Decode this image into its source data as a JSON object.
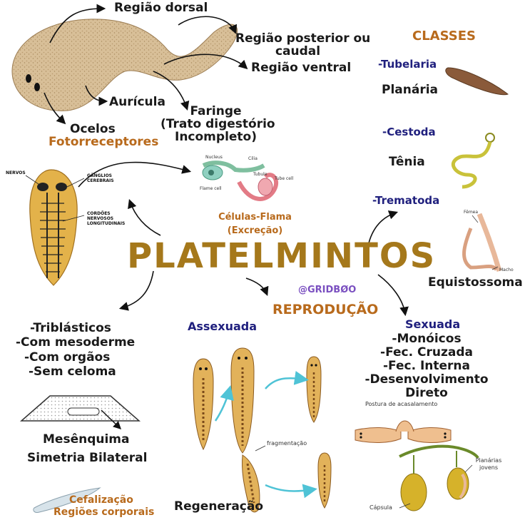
{
  "title": "PLATELMINTOS",
  "watermark": "@GRIDBØO",
  "top_labels": {
    "dorsal": "Região dorsal",
    "posterior_1": "Região posterior ou",
    "posterior_2": "caudal",
    "ventral": "Região ventral",
    "auricula": "Aurícula",
    "faringe_1": "Faringe",
    "faringe_2": "(Trato digestório",
    "faringe_3": "Incompleto)",
    "ocelos": "Ocelos",
    "fotorreceptores": "Fotorreceptores"
  },
  "nervous": {
    "nervos": "NERVOS",
    "ganglios_1": "GÂNGLIOS",
    "ganglios_2": "CEREBRAIS",
    "cordoes_1": "CORDÕES",
    "cordoes_2": "NERVOSOS",
    "cordoes_3": "LONGITUDINAIS"
  },
  "flame_cell": {
    "label_1": "Células-Flama",
    "label_2": "(Excreção)",
    "nucleus": "Nucleus",
    "cilia": "Cilia",
    "flame": "Flame cell",
    "tubule": "Tubule",
    "tubecell": "Tube cell"
  },
  "classes": {
    "heading": "CLASSES",
    "items": [
      {
        "class": "-Tubelaria",
        "example": "Planária"
      },
      {
        "class": "-Cestoda",
        "example": "Tênia"
      },
      {
        "class": "-Trematoda",
        "example": "Equistossoma"
      }
    ],
    "femea": "Fêmea",
    "macho": "Macho"
  },
  "characteristics": [
    "-Triblásticos",
    "-Com mesoderme",
    "-Com orgãos",
    "-Sem celoma"
  ],
  "mesenquima": "Mesênquima",
  "simetria": "Simetria Bilateral",
  "cefalizacao": "Cefalização",
  "regioes": "Regiões corporais",
  "reproducao": {
    "heading": "REPRODUÇÃO",
    "assexuada": "Assexuada",
    "sexuada": "Sexuada",
    "sexuada_items": [
      "-Monóicos",
      "-Fec. Cruzada",
      "-Fec. Interna",
      "-Desenvolvimento",
      "Direto"
    ],
    "fragmentacao": "fragmentação",
    "regeneracao": "Regeneração",
    "postura": "Postura de acasalamento",
    "capsula": "Cápsula",
    "planarias_1": "Planárias",
    "planarias_2": "jovens"
  },
  "colors": {
    "brown": "#b86a1c",
    "navy": "#20207e",
    "title": "#a5781b",
    "planaria": "#c8a06a"
  }
}
